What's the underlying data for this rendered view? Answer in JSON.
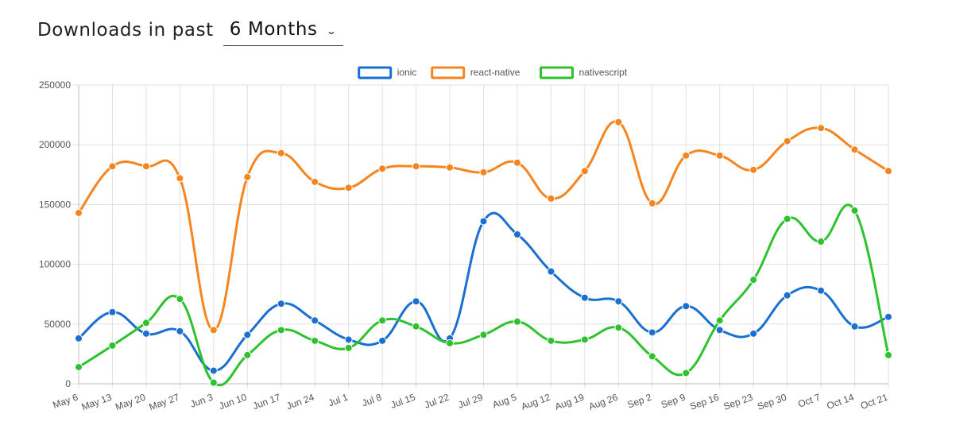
{
  "header": {
    "label": "Downloads in past",
    "period": "6 Months"
  },
  "chart_data": {
    "type": "line",
    "categories": [
      "May 6",
      "May 13",
      "May 20",
      "May 27",
      "Jun 3",
      "Jun 10",
      "Jun 17",
      "Jun 24",
      "Jul 1",
      "Jul 8",
      "Jul 15",
      "Jul 22",
      "Jul 29",
      "Aug 5",
      "Aug 12",
      "Aug 19",
      "Aug 26",
      "Sep 2",
      "Sep 9",
      "Sep 16",
      "Sep 23",
      "Sep 30",
      "Oct 7",
      "Oct 14",
      "Oct 21"
    ],
    "ylim": [
      0,
      250000
    ],
    "yticks": [
      "250000",
      "200000",
      "150000",
      "100000",
      "50000",
      "0"
    ],
    "grid": true,
    "legend_position": "top-center",
    "series": [
      {
        "name": "ionic",
        "color": "#1a6fd0",
        "values": [
          38000,
          60000,
          42000,
          44000,
          11000,
          41000,
          67000,
          53000,
          37000,
          36000,
          69000,
          38000,
          136000,
          125000,
          94000,
          72000,
          69000,
          43000,
          65000,
          45000,
          42000,
          74000,
          78000,
          48000,
          56000
        ]
      },
      {
        "name": "react-native",
        "color": "#f5851f",
        "values": [
          143000,
          182000,
          182000,
          172000,
          45000,
          173000,
          193000,
          169000,
          164000,
          180000,
          182000,
          181000,
          177000,
          185000,
          155000,
          178000,
          219000,
          151000,
          191000,
          191000,
          179000,
          203000,
          214000,
          196000,
          178000
        ]
      },
      {
        "name": "nativescript",
        "color": "#2ec32e",
        "values": [
          14000,
          32000,
          51000,
          71000,
          1000,
          24000,
          45000,
          36000,
          30000,
          53000,
          48000,
          34000,
          41000,
          52000,
          36000,
          37000,
          47000,
          23000,
          9000,
          53000,
          87000,
          138000,
          119000,
          145000,
          24000
        ]
      }
    ]
  }
}
